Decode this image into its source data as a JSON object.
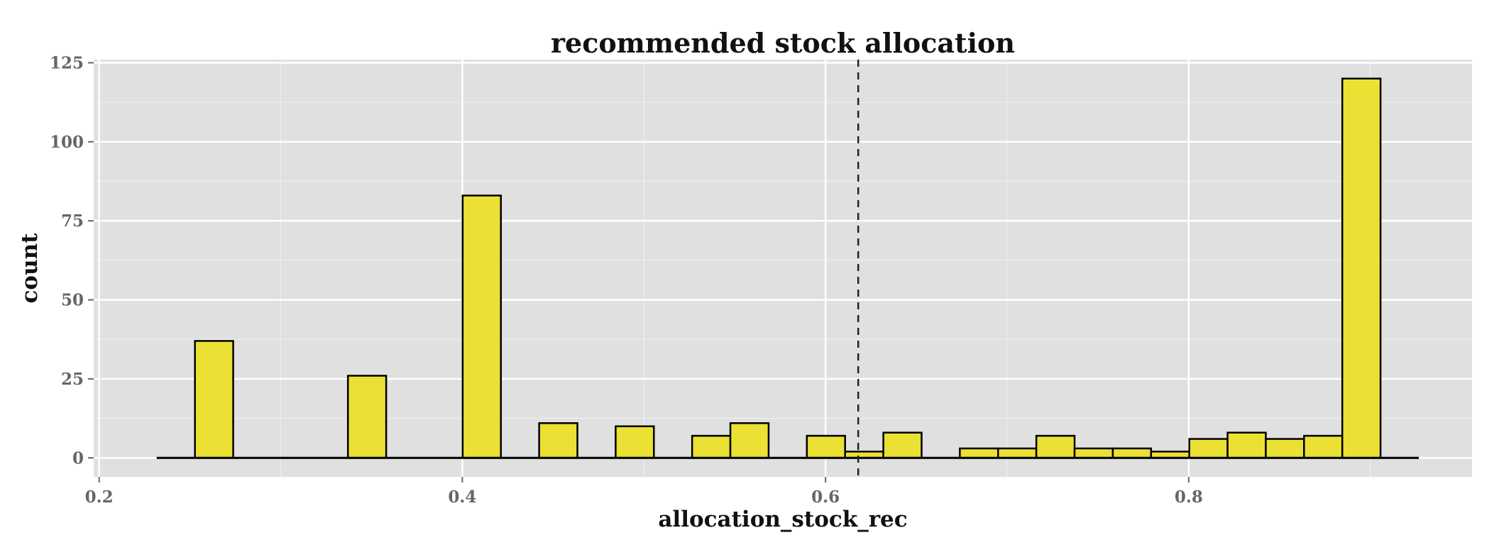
{
  "chart_data": {
    "type": "bar",
    "title": "recommended stock allocation",
    "xlabel": "allocation_stock_rec",
    "ylabel": "count",
    "xlim": [
      0.197,
      0.956
    ],
    "ylim": [
      -6,
      126
    ],
    "x_ticks": [
      0.2,
      0.4,
      0.6,
      0.8
    ],
    "x_tick_labels": [
      "0.2",
      "0.4",
      "0.6",
      "0.8"
    ],
    "y_ticks": [
      0,
      25,
      50,
      75,
      100,
      125
    ],
    "y_tick_labels": [
      "0",
      "25",
      "50",
      "75",
      "100",
      "125"
    ],
    "grid": true,
    "bin_range": [
      0.2317,
      0.9267
    ],
    "bin_width": 0.02106,
    "counts": [
      0,
      37,
      0,
      0,
      0,
      26,
      0,
      0,
      83,
      0,
      11,
      0,
      10,
      0,
      7,
      11,
      0,
      7,
      2,
      8,
      0,
      3,
      3,
      7,
      3,
      3,
      2,
      6,
      8,
      6,
      7,
      120,
      0
    ],
    "vline": {
      "x": 0.618,
      "style": "dashed"
    },
    "colors": {
      "fill": "#ebe034",
      "stroke": "#000000",
      "panel": "#e0e0e0",
      "grid": "#ffffff"
    }
  }
}
